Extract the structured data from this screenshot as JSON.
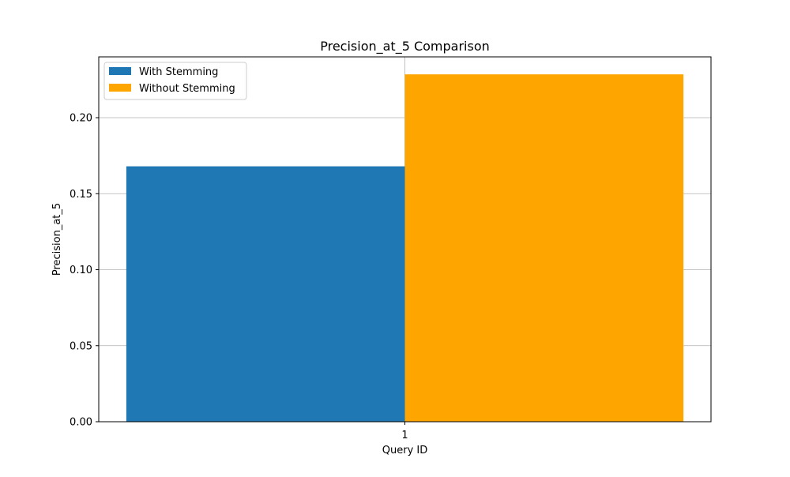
{
  "chart_data": {
    "type": "bar",
    "title": "Precision_at_5 Comparison",
    "xlabel": "Query ID",
    "ylabel": "Precision_at_5",
    "categories": [
      "1"
    ],
    "series": [
      {
        "name": "With Stemming",
        "values": [
          0.168
        ],
        "color": "#1f77b4"
      },
      {
        "name": "Without Stemming",
        "values": [
          0.2285
        ],
        "color": "#ffa500"
      }
    ],
    "ylim": [
      0,
      0.24
    ],
    "yticks": [
      0.0,
      0.05,
      0.1,
      0.15,
      0.2
    ],
    "ytick_labels": [
      "0.00",
      "0.05",
      "0.10",
      "0.15",
      "0.20"
    ],
    "grid": true,
    "legend_position": "upper left"
  }
}
